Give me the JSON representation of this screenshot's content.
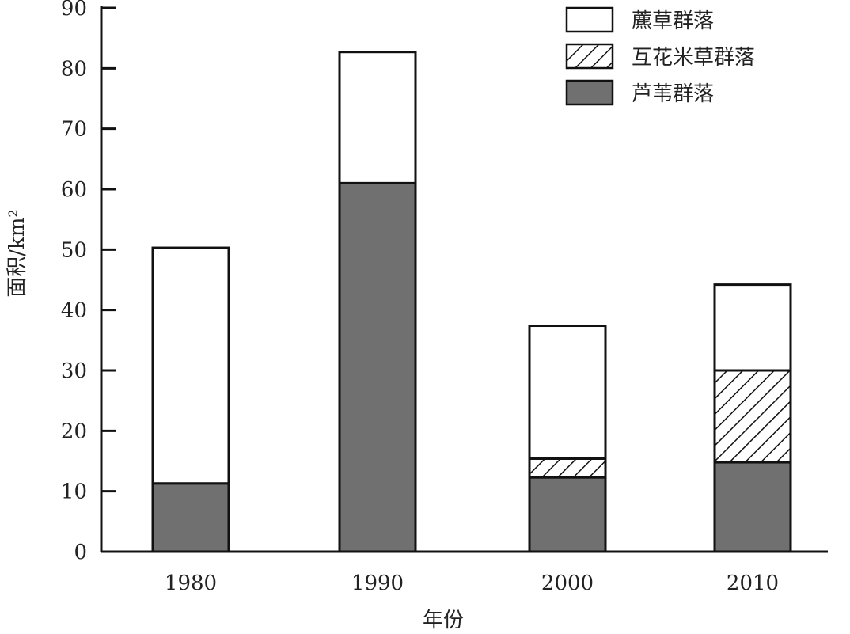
{
  "chart_data": {
    "type": "bar",
    "stacked": true,
    "categories": [
      "1980",
      "1990",
      "2000",
      "2010"
    ],
    "series": [
      {
        "name": "芦苇群落",
        "values": [
          11.3,
          61,
          12.3,
          14.8
        ],
        "color": "#707070",
        "pattern": "solid"
      },
      {
        "name": "互花米草群落",
        "values": [
          0,
          0,
          3.1,
          15.2
        ],
        "color": "#ffffff",
        "pattern": "hatch"
      },
      {
        "name": "藨草群落",
        "values": [
          39.0,
          21.7,
          22.0,
          14.2
        ],
        "color": "#ffffff",
        "pattern": "none"
      }
    ],
    "xlabel": "年份",
    "ylabel": "面积/km²",
    "ylim": [
      0,
      90
    ],
    "yticks": [
      0,
      10,
      20,
      30,
      40,
      50,
      60,
      70,
      80,
      90
    ],
    "grid": false,
    "legend_position": "top-right",
    "legend_order": [
      "藨草群落",
      "互花米草群落",
      "芦苇群落"
    ]
  }
}
